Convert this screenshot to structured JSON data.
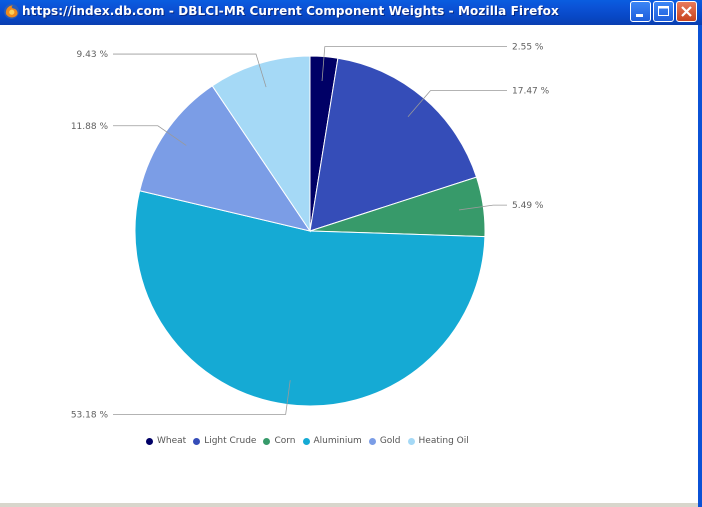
{
  "window": {
    "title": "https://index.db.com - DBLCI-MR Current Component Weights - Mozilla Firefox",
    "icon": "firefox-icon",
    "titlebar_color": "#0b52d6"
  },
  "chart_data": {
    "type": "pie",
    "title": "",
    "categories": [
      "Wheat",
      "Light Crude",
      "Corn",
      "Aluminium",
      "Gold",
      "Heating Oil"
    ],
    "values": [
      2.55,
      17.47,
      5.49,
      53.18,
      11.88,
      9.43
    ],
    "labels": [
      "2.55 %",
      "17.47 %",
      "5.49 %",
      "53.18 %",
      "11.88 %",
      "9.43 %"
    ],
    "colors": [
      "#000066",
      "#354db8",
      "#379a6a",
      "#15aad4",
      "#7b9de6",
      "#a5d9f6"
    ],
    "start_angle_deg": 0,
    "direction": "clockwise",
    "legend_position": "bottom"
  }
}
